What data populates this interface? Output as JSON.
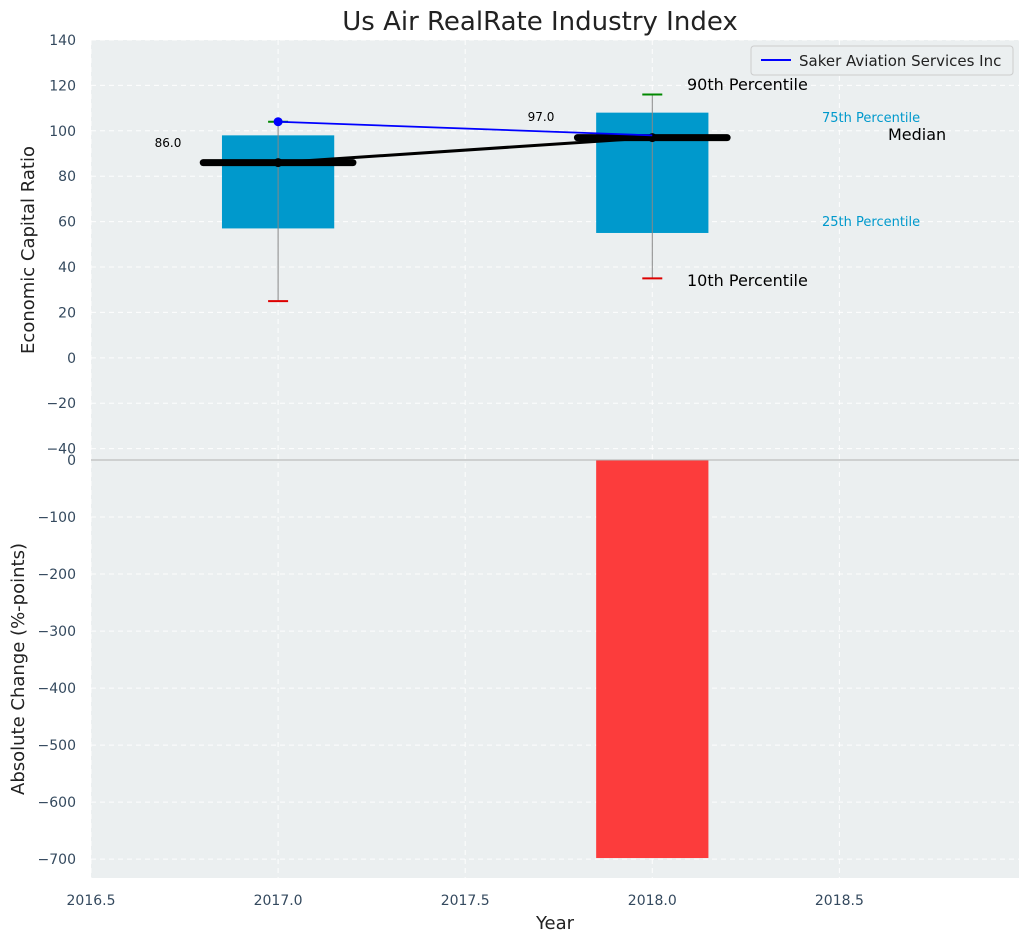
{
  "chart_data": {
    "type": "bar",
    "title": "Us Air RealRate Industry Index",
    "xlabel": "Year",
    "x_ticks": [
      "2016.5",
      "2017.0",
      "2017.5",
      "2018.0",
      "2018.5"
    ],
    "xlim": [
      2016.5,
      2018.98
    ],
    "top_panel": {
      "ylabel": "Economic Capital Ratio",
      "ylim": [
        -45,
        140
      ],
      "y_ticks": [
        "140",
        "120",
        "100",
        "80",
        "60",
        "40",
        "20",
        "0",
        "−20",
        "−40"
      ],
      "years": [
        2017.0,
        2018.0
      ],
      "percentile_boxes": [
        {
          "year": 2017.0,
          "p10": 25,
          "p25": 57,
          "median": 86,
          "p75": 98,
          "p90": 104
        },
        {
          "year": 2018.0,
          "p10": 35,
          "p25": 55,
          "median": 97,
          "p75": 108,
          "p90": 116
        }
      ],
      "median_labels": [
        "86.0",
        "97.0"
      ],
      "series": [
        {
          "name": "Saker Aviation Services Inc",
          "color": "#0000ff",
          "x": [
            2017.0,
            2018.0
          ],
          "values": [
            104,
            98
          ]
        }
      ],
      "annotations": {
        "p90": "90th Percentile",
        "p75": "75th Percentile",
        "median": "Median",
        "p25": "25th Percentile",
        "p10": "10th Percentile"
      },
      "legend_position": "top-right"
    },
    "bottom_panel": {
      "ylabel": "Absolute Change (%-points)",
      "ylim": [
        -733,
        0
      ],
      "y_ticks": [
        "0",
        "−100",
        "−200",
        "−300",
        "−400",
        "−500",
        "−600",
        "−700"
      ],
      "bars": [
        {
          "year": 2018.0,
          "value": -698,
          "color": "#fc3c3c"
        }
      ]
    },
    "colors": {
      "box": "#0099cc",
      "background": "#ebeff0",
      "p10_cap": "#dd0000",
      "p90_cap": "#008800",
      "whisker": "#888888",
      "median_line": "#000000"
    },
    "grid": true
  }
}
